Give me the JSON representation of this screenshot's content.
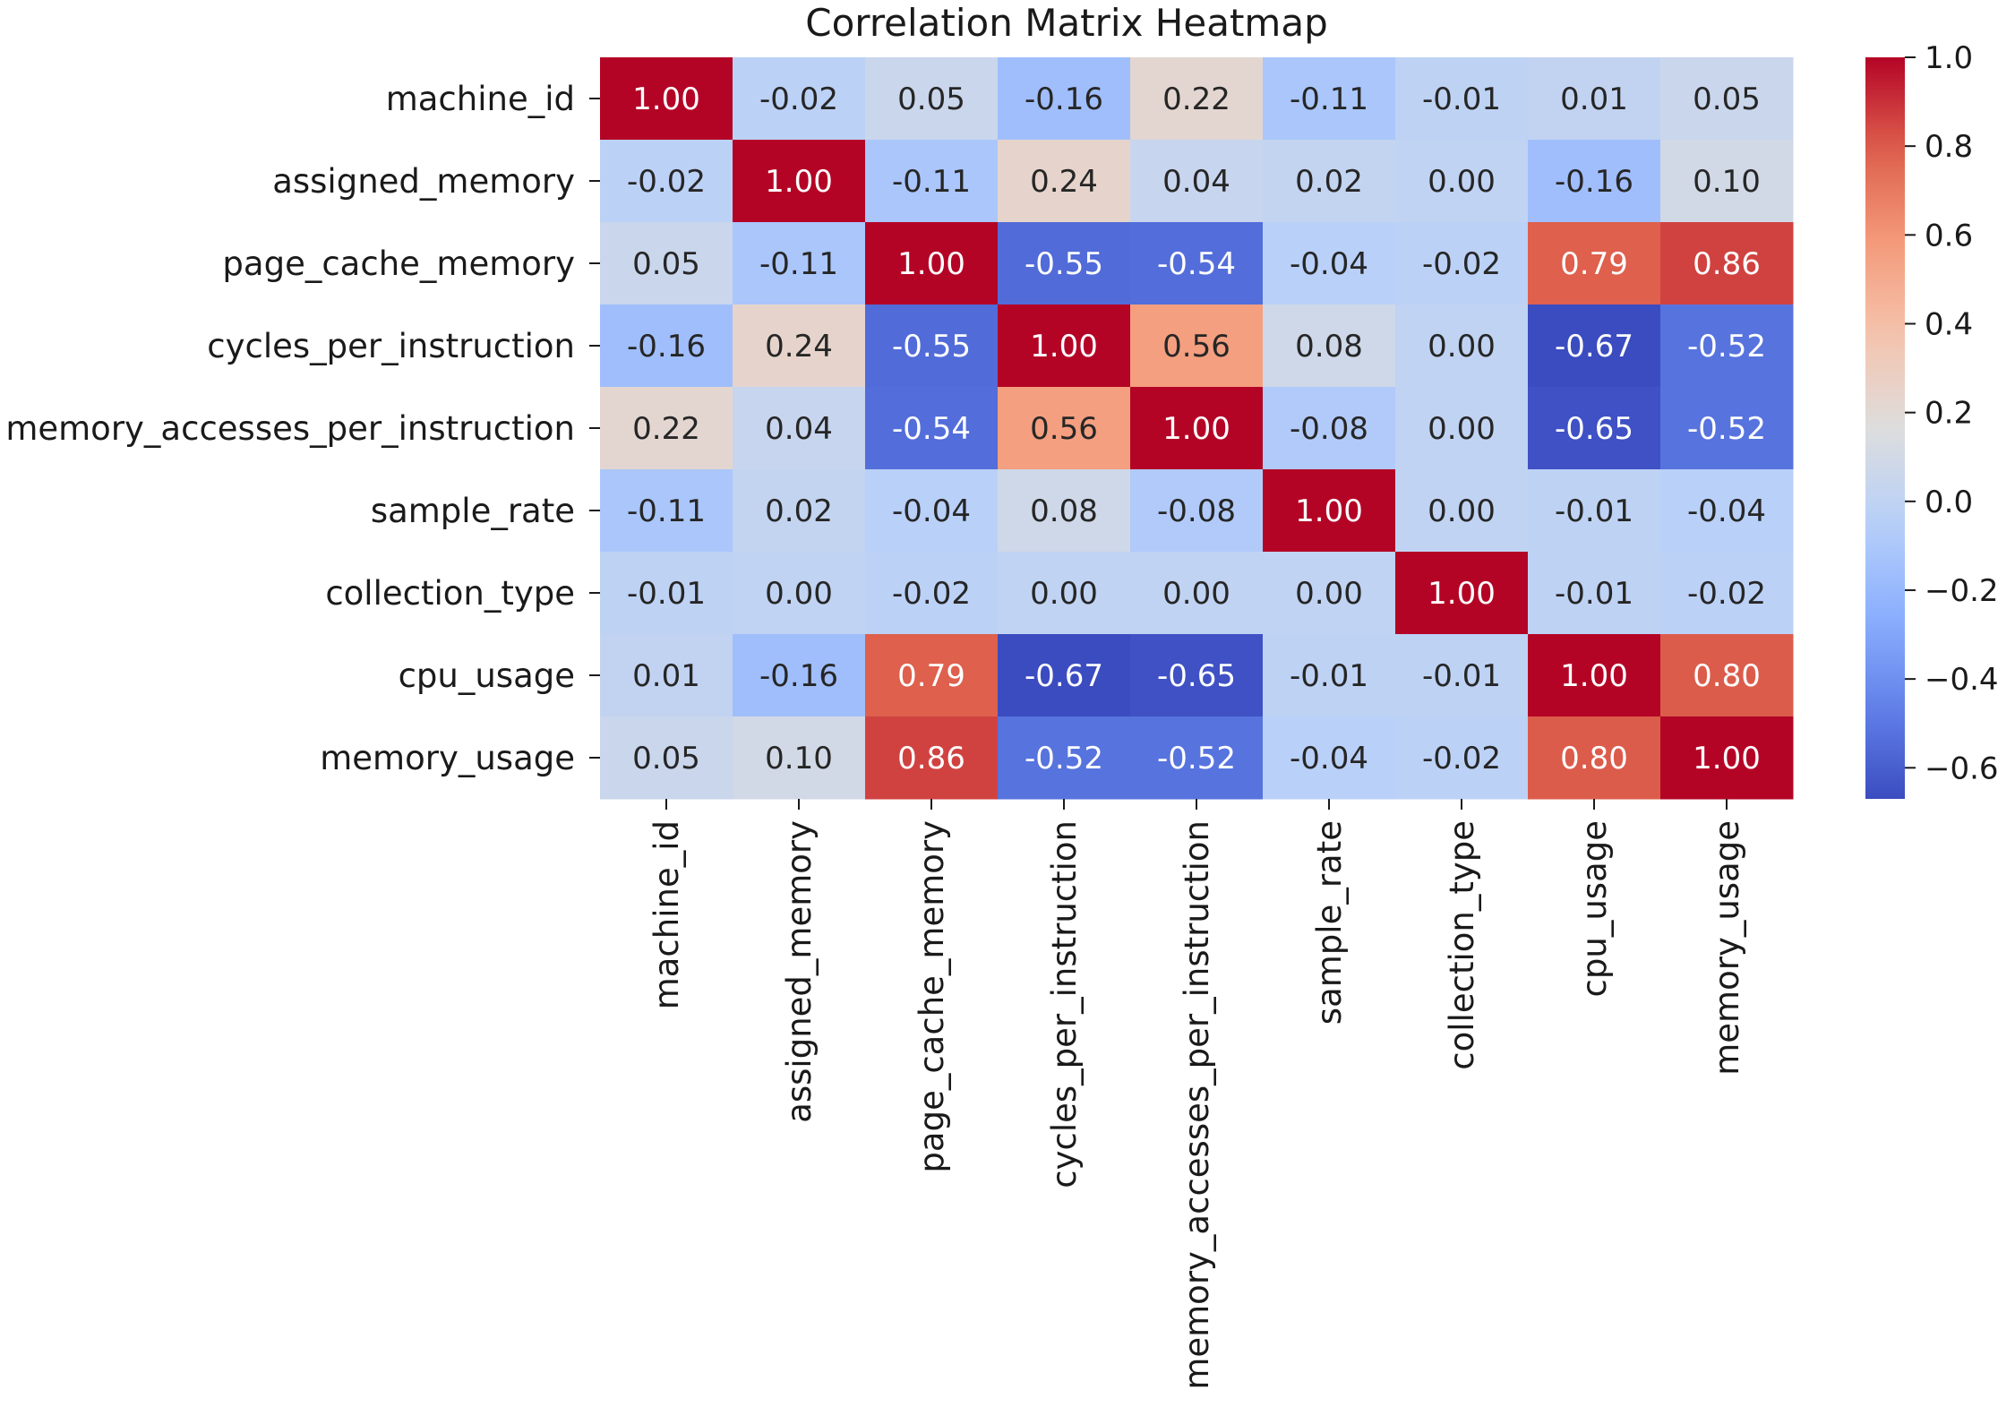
{
  "chart_data": {
    "type": "heatmap",
    "title": "Correlation Matrix Heatmap",
    "rows": [
      "machine_id",
      "assigned_memory",
      "page_cache_memory",
      "cycles_per_instruction",
      "memory_accesses_per_instruction",
      "sample_rate",
      "collection_type",
      "cpu_usage",
      "memory_usage"
    ],
    "columns": [
      "machine_id",
      "assigned_memory",
      "page_cache_memory",
      "cycles_per_instruction",
      "memory_accesses_per_instruction",
      "sample_rate",
      "collection_type",
      "cpu_usage",
      "memory_usage"
    ],
    "values": [
      [
        1.0,
        -0.02,
        0.05,
        -0.16,
        0.22,
        -0.11,
        -0.01,
        0.01,
        0.05
      ],
      [
        -0.02,
        1.0,
        -0.11,
        0.24,
        0.04,
        0.02,
        0.0,
        -0.16,
        0.1
      ],
      [
        0.05,
        -0.11,
        1.0,
        -0.55,
        -0.54,
        -0.04,
        -0.02,
        0.79,
        0.86
      ],
      [
        -0.16,
        0.24,
        -0.55,
        1.0,
        0.56,
        0.08,
        0.0,
        -0.67,
        -0.52
      ],
      [
        0.22,
        0.04,
        -0.54,
        0.56,
        1.0,
        -0.08,
        0.0,
        -0.65,
        -0.52
      ],
      [
        -0.11,
        0.02,
        -0.04,
        0.08,
        -0.08,
        1.0,
        0.0,
        -0.01,
        -0.04
      ],
      [
        -0.01,
        0.0,
        -0.02,
        0.0,
        0.0,
        0.0,
        1.0,
        -0.01,
        -0.02
      ],
      [
        0.01,
        -0.16,
        0.79,
        -0.67,
        -0.65,
        -0.01,
        -0.01,
        1.0,
        0.8
      ],
      [
        0.05,
        0.1,
        0.86,
        -0.52,
        -0.52,
        -0.04,
        -0.02,
        0.8,
        1.0
      ]
    ],
    "value_labels": [
      [
        "1.00",
        "-0.02",
        "0.05",
        "-0.16",
        "0.22",
        "-0.11",
        "-0.01",
        "0.01",
        "0.05"
      ],
      [
        "-0.02",
        "1.00",
        "-0.11",
        "0.24",
        "0.04",
        "0.02",
        "0.00",
        "-0.16",
        "0.10"
      ],
      [
        "0.05",
        "-0.11",
        "1.00",
        "-0.55",
        "-0.54",
        "-0.04",
        "-0.02",
        "0.79",
        "0.86"
      ],
      [
        "-0.16",
        "0.24",
        "-0.55",
        "1.00",
        "0.56",
        "0.08",
        "0.00",
        "-0.67",
        "-0.52"
      ],
      [
        "0.22",
        "0.04",
        "-0.54",
        "0.56",
        "1.00",
        "-0.08",
        "0.00",
        "-0.65",
        "-0.52"
      ],
      [
        "-0.11",
        "0.02",
        "-0.04",
        "0.08",
        "-0.08",
        "1.00",
        "0.00",
        "-0.01",
        "-0.04"
      ],
      [
        "-0.01",
        "0.00",
        "-0.02",
        "0.00",
        "0.00",
        "0.00",
        "1.00",
        "-0.01",
        "-0.02"
      ],
      [
        "0.01",
        "-0.16",
        "0.79",
        "-0.67",
        "-0.65",
        "-0.01",
        "-0.01",
        "1.00",
        "0.80"
      ],
      [
        "0.05",
        "0.10",
        "0.86",
        "-0.52",
        "-0.52",
        "-0.04",
        "-0.02",
        "0.80",
        "1.00"
      ]
    ],
    "colormap": "coolwarm",
    "color_range": [
      -0.67,
      1.0
    ],
    "colorbar_ticks": [
      1.0,
      0.8,
      0.6,
      0.4,
      0.2,
      0.0,
      -0.2,
      -0.4,
      -0.6
    ],
    "colorbar_tick_labels": [
      "1.0",
      "0.8",
      "0.6",
      "0.4",
      "0.2",
      "0.0",
      "−0.2",
      "−0.4",
      "−0.6"
    ],
    "colorbar_placement": "right",
    "grid": false
  }
}
